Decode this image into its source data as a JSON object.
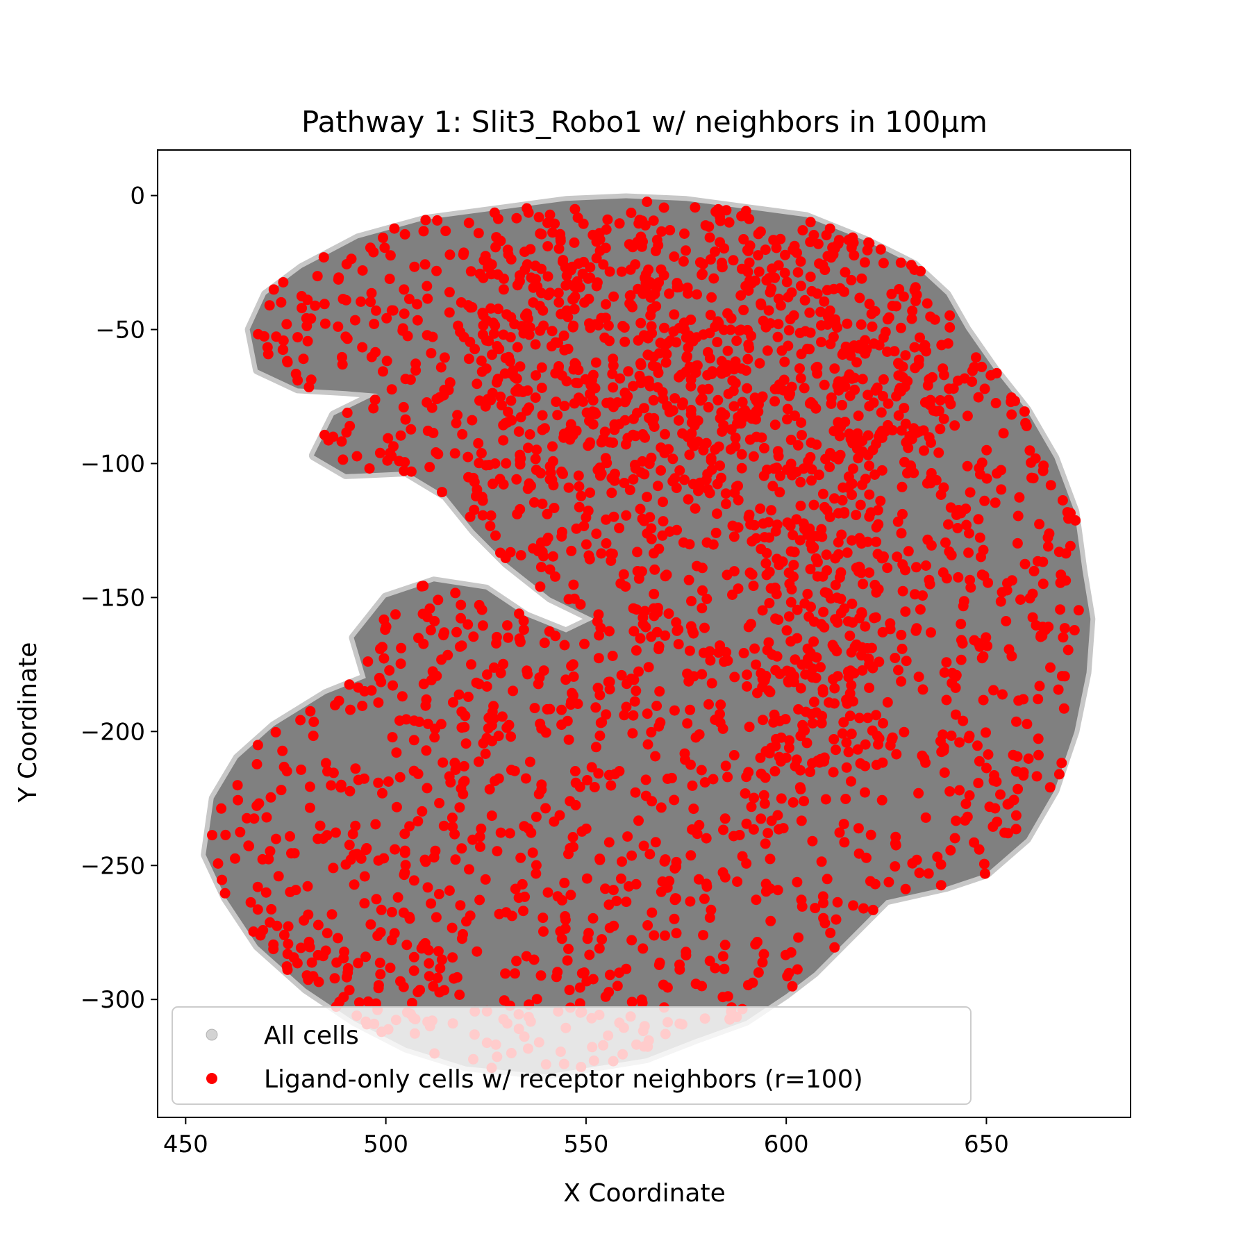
{
  "chart_data": {
    "type": "scatter",
    "title": "Pathway 1: Slit3_Robo1 w/ neighbors in 100µm",
    "xlabel": "X Coordinate",
    "ylabel": "Y Coordinate",
    "xlim": [
      443,
      686
    ],
    "ylim": [
      -344,
      17
    ],
    "xticks": [
      450,
      500,
      550,
      600,
      650
    ],
    "yticks": [
      0,
      -50,
      -100,
      -150,
      -200,
      -250,
      -300
    ],
    "xtick_labels": [
      "450",
      "500",
      "550",
      "600",
      "650"
    ],
    "ytick_labels": [
      "0",
      "−50",
      "−100",
      "−150",
      "−200",
      "−250",
      "−300"
    ],
    "legend_position": "lower-left",
    "series": [
      {
        "name": "All cells",
        "color": "#808080",
        "marker": "circle",
        "region_outline": [
          [
            560,
            -1
          ],
          [
            575,
            -2
          ],
          [
            590,
            -5
          ],
          [
            605,
            -8
          ],
          [
            620,
            -17
          ],
          [
            632,
            -26
          ],
          [
            640,
            -37
          ],
          [
            645,
            -50
          ],
          [
            652,
            -65
          ],
          [
            660,
            -80
          ],
          [
            667,
            -98
          ],
          [
            672,
            -118
          ],
          [
            674,
            -140
          ],
          [
            676,
            -158
          ],
          [
            675,
            -178
          ],
          [
            672,
            -200
          ],
          [
            667,
            -222
          ],
          [
            660,
            -240
          ],
          [
            650,
            -253
          ],
          [
            640,
            -258
          ],
          [
            625,
            -263
          ],
          [
            617,
            -275
          ],
          [
            607,
            -290
          ],
          [
            600,
            -298
          ],
          [
            590,
            -308
          ],
          [
            577,
            -315
          ],
          [
            565,
            -322
          ],
          [
            540,
            -328
          ],
          [
            520,
            -325
          ],
          [
            505,
            -318
          ],
          [
            492,
            -308
          ],
          [
            480,
            -296
          ],
          [
            468,
            -280
          ],
          [
            460,
            -262
          ],
          [
            455,
            -246
          ],
          [
            457,
            -225
          ],
          [
            463,
            -210
          ],
          [
            472,
            -198
          ],
          [
            485,
            -186
          ],
          [
            495,
            -180
          ],
          [
            492,
            -165
          ],
          [
            500,
            -150
          ],
          [
            512,
            -144
          ],
          [
            525,
            -147
          ],
          [
            535,
            -157
          ],
          [
            545,
            -163
          ],
          [
            552,
            -158
          ],
          [
            541,
            -150
          ],
          [
            530,
            -137
          ],
          [
            522,
            -125
          ],
          [
            515,
            -112
          ],
          [
            505,
            -103
          ],
          [
            490,
            -104
          ],
          [
            482,
            -97
          ],
          [
            487,
            -82
          ],
          [
            498,
            -74
          ],
          [
            490,
            -73
          ],
          [
            478,
            -72
          ],
          [
            468,
            -65
          ],
          [
            466,
            -50
          ],
          [
            470,
            -37
          ],
          [
            479,
            -27
          ],
          [
            493,
            -16
          ],
          [
            510,
            -9
          ],
          [
            530,
            -5
          ],
          [
            545,
            -2
          ]
        ]
      },
      {
        "name": "Ligand-only cells w/ receptor neighbors (r=100)",
        "color": "#ff0000",
        "marker": "circle",
        "sample_count": 2600
      }
    ]
  }
}
